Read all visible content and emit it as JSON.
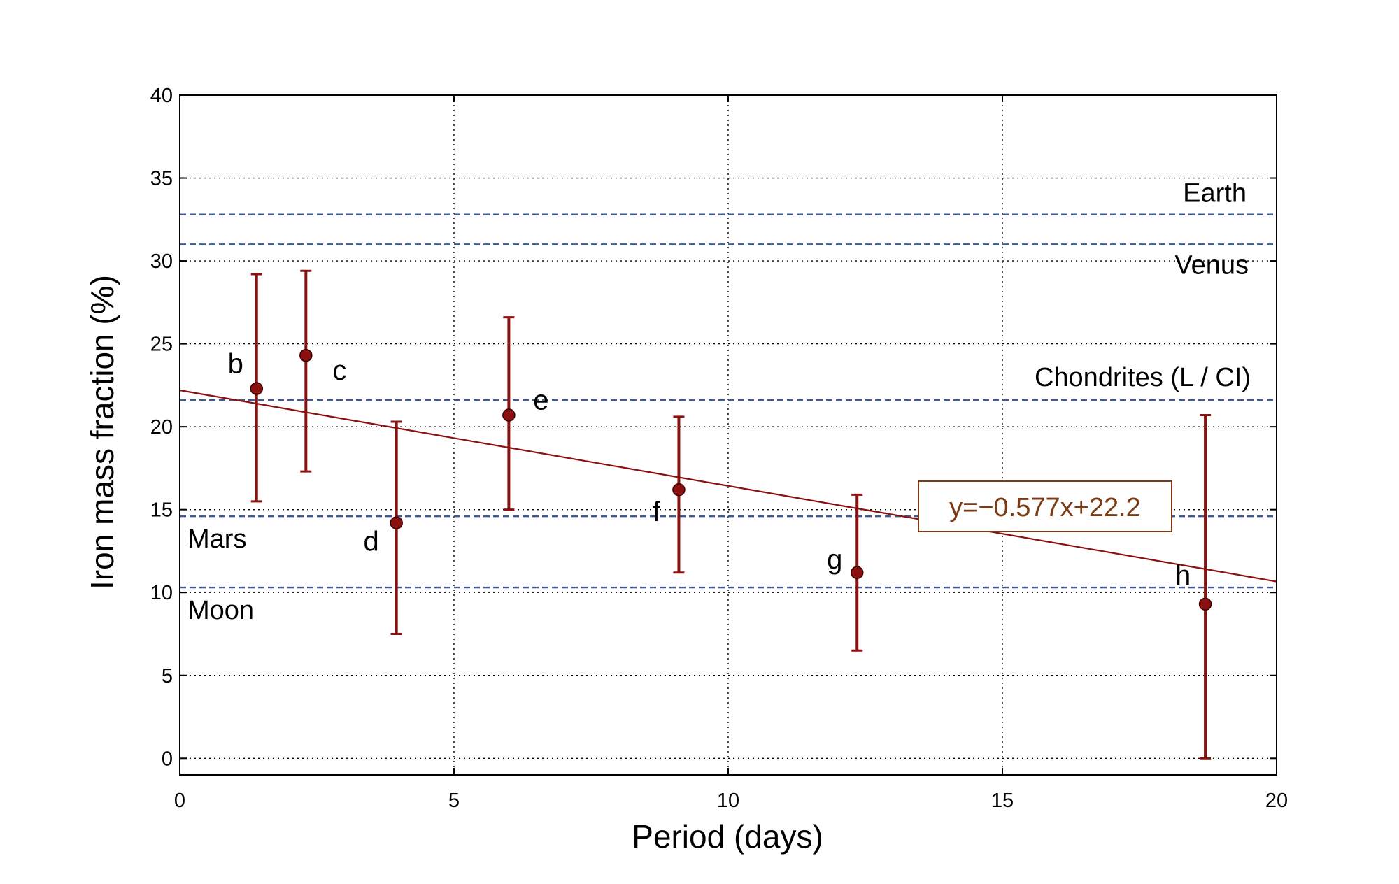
{
  "chart_data": {
    "type": "scatter",
    "title": "",
    "xlabel": "Period (days)",
    "ylabel": "Iron mass fraction (%)",
    "xlim": [
      0,
      20
    ],
    "ylim": [
      -1,
      40
    ],
    "x_ticks": [
      0,
      5,
      10,
      15,
      20
    ],
    "y_ticks": [
      0,
      5,
      10,
      15,
      20,
      25,
      30,
      35,
      40
    ],
    "grid": true,
    "legend": "none",
    "series": [
      {
        "points": [
          {
            "label": "b",
            "x": 1.4,
            "y": 22.3,
            "y_low": 15.5,
            "y_high": 29.2
          },
          {
            "label": "c",
            "x": 2.3,
            "y": 24.3,
            "y_low": 17.3,
            "y_high": 29.4
          },
          {
            "label": "d",
            "x": 3.95,
            "y": 14.2,
            "y_low": 7.5,
            "y_high": 20.3
          },
          {
            "label": "e",
            "x": 6.0,
            "y": 20.7,
            "y_low": 15.0,
            "y_high": 26.6
          },
          {
            "label": "f",
            "x": 9.1,
            "y": 16.2,
            "y_low": 11.2,
            "y_high": 20.6
          },
          {
            "label": "g",
            "x": 12.35,
            "y": 11.2,
            "y_low": 6.5,
            "y_high": 15.9
          },
          {
            "label": "h",
            "x": 18.7,
            "y": 9.3,
            "y_low": 0.0,
            "y_high": 20.7
          }
        ]
      }
    ],
    "fit_line": {
      "slope": -0.577,
      "intercept": 22.2,
      "label": "y=−0.577x+22.2"
    },
    "reference_lines": [
      {
        "label": "Earth",
        "y": 32.8
      },
      {
        "label": "Venus",
        "y": 31.0
      },
      {
        "label": "Chondrites (L / CI)",
        "y": 21.6
      },
      {
        "label": "Mars",
        "y": 14.6
      },
      {
        "label": "Moon",
        "y": 10.3
      }
    ],
    "colors": {
      "points": "#8b1010",
      "reference_lines": "#3a5a9a",
      "fit_text": "#7b3a14",
      "fit_box_border": "#7b3a14"
    }
  }
}
